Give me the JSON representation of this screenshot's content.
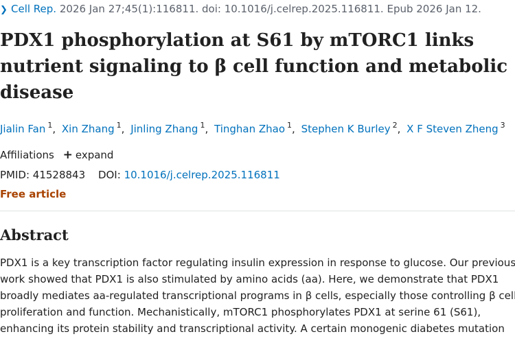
{
  "citation": {
    "journal": "Cell Rep.",
    "details": "2026 Jan 27;45(1):116811. doi: 10.1016/j.celrep.2025.116811. Epub 2026 Jan 12."
  },
  "title_lines": [
    "PDX1 phosphorylation at S61 by mTORC1 links",
    "nutrient signaling to β cell function and metabolic",
    "disease"
  ],
  "authors": [
    {
      "name": "Jialin Fan",
      "aff": "1"
    },
    {
      "name": "Xin Zhang",
      "aff": "1"
    },
    {
      "name": "Jinling Zhang",
      "aff": "1"
    },
    {
      "name": "Tinghan Zhao",
      "aff": "1"
    },
    {
      "name": "Stephen K Burley",
      "aff": "2"
    },
    {
      "name": "X F Steven Zheng",
      "aff": "3"
    }
  ],
  "affiliations": {
    "label": "Affiliations",
    "expand_label": "expand",
    "expand_icon": "plus-icon"
  },
  "ids": {
    "pmid_label": "PMID:",
    "pmid": "41528843",
    "doi_label": "DOI:",
    "doi": "10.1016/j.celrep.2025.116811"
  },
  "free_label": "Free article",
  "abstract": {
    "heading": "Abstract",
    "lines": [
      "PDX1 is a key transcription factor regulating insulin expression in response to glucose. Our previous",
      "work showed that PDX1 is also stimulated by amino acids (aa). Here, we demonstrate that PDX1",
      "broadly mediates aa-regulated transcriptional programs in β cells, especially those controlling β cell",
      "proliferation and function. Mechanistically, mTORC1 phosphorylates PDX1 at serine 61 (S61),",
      "enhancing its protein stability and transcriptional activity. A certain monogenic diabetes mutation"
    ]
  },
  "colors": {
    "link": "#0071bc",
    "free": "#a84200",
    "text": "#212121",
    "muted": "#5b616b"
  }
}
